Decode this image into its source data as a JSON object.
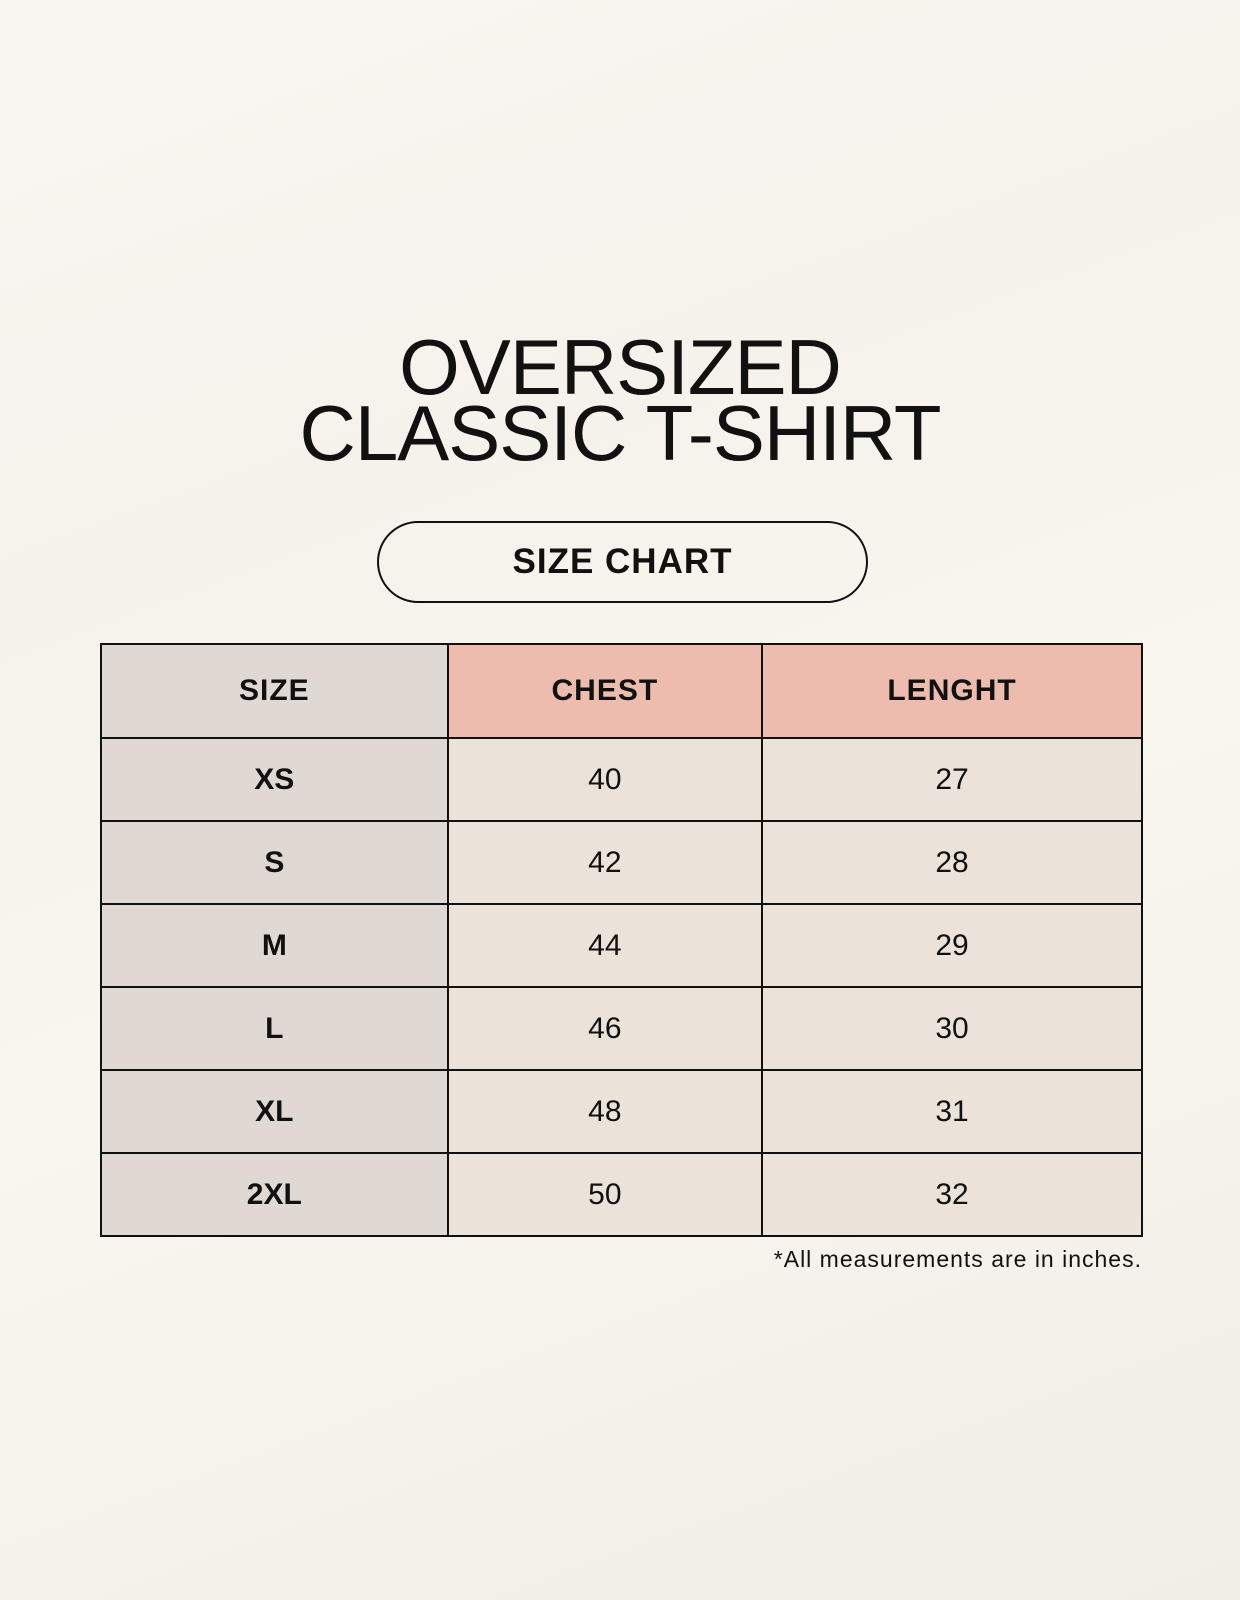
{
  "title": {
    "line1": "OVERSIZED",
    "line2": "CLASSIC T-SHIRT"
  },
  "badge": "SIZE CHART",
  "table": {
    "headers": [
      "SIZE",
      "CHEST",
      "LENGHT"
    ],
    "rows": [
      [
        "XS",
        "40",
        "27"
      ],
      [
        "S",
        "42",
        "28"
      ],
      [
        "M",
        "44",
        "29"
      ],
      [
        "L",
        "46",
        "30"
      ],
      [
        "XL",
        "48",
        "31"
      ],
      [
        "2XL",
        "50",
        "32"
      ]
    ]
  },
  "footnote": "*All measurements are in inches.",
  "colors": {
    "header_accent": "#edbcaf",
    "size_column": "#e0d8d2",
    "cell": "#ebe3d9",
    "background": "#f8f5ef"
  }
}
